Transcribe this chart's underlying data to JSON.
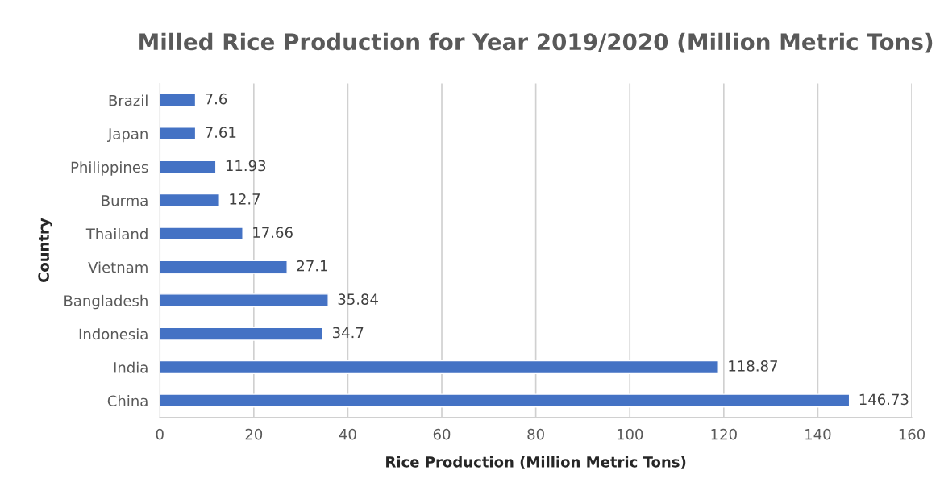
{
  "chart_data": {
    "type": "bar",
    "orientation": "horizontal",
    "title": "Milled Rice Production for Year 2019/2020 (Million Metric Tons)",
    "xlabel": "Rice Production (Million Metric Tons)",
    "ylabel": "Country",
    "categories": [
      "Brazil",
      "Japan",
      "Philippines",
      "Burma",
      "Thailand",
      "Vietnam",
      "Bangladesh",
      "Indonesia",
      "India",
      "China"
    ],
    "values": [
      7.6,
      7.61,
      11.93,
      12.7,
      17.66,
      27.1,
      35.84,
      34.7,
      118.87,
      146.73
    ],
    "color": "#4472c4",
    "xlim": [
      0,
      160
    ],
    "xticks": [
      0,
      20,
      40,
      60,
      80,
      100,
      120,
      140,
      160
    ],
    "grid": "x",
    "data_labels": true
  }
}
